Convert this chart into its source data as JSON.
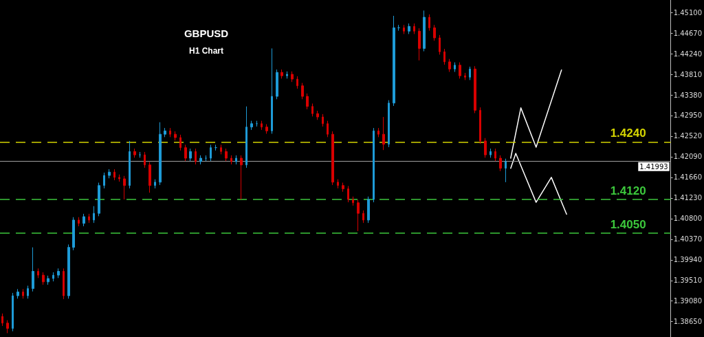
{
  "chart_data": {
    "type": "candlestick",
    "title": "GBPUSD",
    "subtitle": "H1 Chart",
    "categories": [
      null,
      null,
      null,
      null,
      null,
      null,
      null,
      null,
      null,
      null,
      null,
      null,
      null,
      null,
      null,
      null,
      null,
      null,
      null,
      null,
      null,
      null,
      null,
      null,
      null,
      null,
      null,
      null,
      null,
      null,
      null,
      null,
      null,
      null,
      null,
      null,
      null,
      null,
      null,
      null,
      null,
      null,
      null,
      null,
      null,
      null,
      null,
      null,
      null,
      null,
      null,
      null,
      null,
      null,
      null,
      null,
      null,
      null,
      null,
      null,
      null,
      null,
      null,
      null,
      null,
      null,
      null,
      null,
      null,
      null,
      null,
      null,
      null,
      null,
      null,
      null,
      null,
      null,
      null,
      null,
      null,
      null,
      null,
      null,
      null,
      null,
      null,
      null,
      null,
      null,
      null,
      null,
      null,
      null,
      null,
      null,
      null,
      null,
      null,
      null,
      null,
      null,
      null,
      null,
      null,
      null,
      null,
      null,
      null,
      null,
      null,
      null,
      null,
      null,
      null,
      null,
      null,
      null,
      null,
      null,
      null,
      null,
      null,
      null,
      null,
      null,
      null,
      null,
      null,
      null,
      null,
      null
    ],
    "ohlc": [
      [
        1.3876,
        1.3882,
        1.3856,
        1.3862
      ],
      [
        1.3862,
        1.3868,
        1.3841,
        1.3851
      ],
      [
        1.3851,
        1.3925,
        1.3845,
        1.3919
      ],
      [
        1.3919,
        1.3933,
        1.3913,
        1.3927
      ],
      [
        1.3927,
        1.3933,
        1.3913,
        1.3919
      ],
      [
        1.3919,
        1.394,
        1.3913,
        1.3934
      ],
      [
        1.3934,
        1.402,
        1.3928,
        1.397
      ],
      [
        1.397,
        1.3976,
        1.3956,
        1.3962
      ],
      [
        1.3962,
        1.3968,
        1.3942,
        1.3948
      ],
      [
        1.3948,
        1.3961,
        1.3942,
        1.3955
      ],
      [
        1.3955,
        1.3968,
        1.3949,
        1.3962
      ],
      [
        1.3962,
        1.3976,
        1.3956,
        1.397
      ],
      [
        1.397,
        1.3976,
        1.3912,
        1.3919
      ],
      [
        1.3919,
        1.4026,
        1.3913,
        1.402
      ],
      [
        1.402,
        1.4083,
        1.4014,
        1.4077
      ],
      [
        1.4077,
        1.4083,
        1.4064,
        1.407
      ],
      [
        1.407,
        1.409,
        1.4064,
        1.4084
      ],
      [
        1.4084,
        1.409,
        1.4071,
        1.4077
      ],
      [
        1.4077,
        1.4106,
        1.4071,
        1.4091
      ],
      [
        1.4091,
        1.4155,
        1.4085,
        1.4149
      ],
      [
        1.4149,
        1.4176,
        1.4143,
        1.417
      ],
      [
        1.417,
        1.4183,
        1.4164,
        1.4177
      ],
      [
        1.4177,
        1.4183,
        1.416,
        1.4166
      ],
      [
        1.4166,
        1.4172,
        1.4157,
        1.4163
      ],
      [
        1.4163,
        1.4169,
        1.412,
        1.4149
      ],
      [
        1.4149,
        1.4242,
        1.4143,
        1.422
      ],
      [
        1.422,
        1.4226,
        1.4207,
        1.4213
      ],
      [
        1.4213,
        1.4219,
        1.4207,
        1.4213
      ],
      [
        1.4213,
        1.4219,
        1.4186,
        1.4192
      ],
      [
        1.4192,
        1.4198,
        1.4134,
        1.4149
      ],
      [
        1.4149,
        1.4162,
        1.4143,
        1.4156
      ],
      [
        1.4156,
        1.4281,
        1.415,
        1.4256
      ],
      [
        1.4256,
        1.4269,
        1.425,
        1.4263
      ],
      [
        1.4263,
        1.4269,
        1.425,
        1.4256
      ],
      [
        1.4256,
        1.4262,
        1.4243,
        1.4249
      ],
      [
        1.4249,
        1.4255,
        1.4222,
        1.4228
      ],
      [
        1.4228,
        1.4234,
        1.42,
        1.4206
      ],
      [
        1.4206,
        1.4226,
        1.42,
        1.422
      ],
      [
        1.422,
        1.4226,
        1.4193,
        1.4199
      ],
      [
        1.4199,
        1.4212,
        1.4193,
        1.4206
      ],
      [
        1.4206,
        1.4212,
        1.42,
        1.4206
      ],
      [
        1.4206,
        1.4234,
        1.42,
        1.4228
      ],
      [
        1.4228,
        1.4234,
        1.4222,
        1.4228
      ],
      [
        1.4228,
        1.4234,
        1.4214,
        1.422
      ],
      [
        1.422,
        1.4226,
        1.42,
        1.4206
      ],
      [
        1.4206,
        1.4212,
        1.4193,
        1.4199
      ],
      [
        1.4199,
        1.4212,
        1.4193,
        1.4206
      ],
      [
        1.4206,
        1.4212,
        1.412,
        1.4192
      ],
      [
        1.4192,
        1.4314,
        1.4186,
        1.4271
      ],
      [
        1.4271,
        1.4284,
        1.4265,
        1.4278
      ],
      [
        1.4278,
        1.4284,
        1.4272,
        1.4278
      ],
      [
        1.4278,
        1.4284,
        1.4265,
        1.4271
      ],
      [
        1.4271,
        1.4277,
        1.4257,
        1.4263
      ],
      [
        1.4263,
        1.4435,
        1.4257,
        1.4335
      ],
      [
        1.4335,
        1.4391,
        1.4329,
        1.4385
      ],
      [
        1.4385,
        1.4391,
        1.4372,
        1.4378
      ],
      [
        1.4378,
        1.4387,
        1.4372,
        1.4381
      ],
      [
        1.4381,
        1.4387,
        1.4365,
        1.4371
      ],
      [
        1.4371,
        1.4377,
        1.4351,
        1.4357
      ],
      [
        1.4357,
        1.4363,
        1.4329,
        1.4335
      ],
      [
        1.4335,
        1.4341,
        1.4308,
        1.4314
      ],
      [
        1.4314,
        1.432,
        1.4293,
        1.4299
      ],
      [
        1.4299,
        1.4305,
        1.4286,
        1.4292
      ],
      [
        1.4292,
        1.4298,
        1.4272,
        1.4278
      ],
      [
        1.4278,
        1.4284,
        1.425,
        1.4256
      ],
      [
        1.4256,
        1.4262,
        1.415,
        1.4156
      ],
      [
        1.4156,
        1.4162,
        1.4143,
        1.4149
      ],
      [
        1.4149,
        1.4155,
        1.4136,
        1.4142
      ],
      [
        1.4142,
        1.4148,
        1.4114,
        1.412
      ],
      [
        1.412,
        1.4126,
        1.4107,
        1.4113
      ],
      [
        1.4113,
        1.4119,
        1.4054,
        1.4091
      ],
      [
        1.4091,
        1.4097,
        1.4071,
        1.4077
      ],
      [
        1.4077,
        1.4126,
        1.4071,
        1.412
      ],
      [
        1.412,
        1.4269,
        1.4114,
        1.4263
      ],
      [
        1.4263,
        1.4269,
        1.425,
        1.4256
      ],
      [
        1.4256,
        1.4292,
        1.4223,
        1.4235
      ],
      [
        1.4235,
        1.4327,
        1.4229,
        1.4321
      ],
      [
        1.4321,
        1.4503,
        1.4315,
        1.4478
      ],
      [
        1.4478,
        1.4484,
        1.4472,
        1.4478
      ],
      [
        1.4478,
        1.4484,
        1.4465,
        1.4471
      ],
      [
        1.4471,
        1.4487,
        1.4465,
        1.4481
      ],
      [
        1.4481,
        1.4487,
        1.4465,
        1.4471
      ],
      [
        1.4471,
        1.4477,
        1.441,
        1.4435
      ],
      [
        1.4435,
        1.4514,
        1.4429,
        1.45
      ],
      [
        1.45,
        1.4506,
        1.4472,
        1.4478
      ],
      [
        1.4478,
        1.4484,
        1.4451,
        1.4457
      ],
      [
        1.4457,
        1.4463,
        1.4422,
        1.4428
      ],
      [
        1.4428,
        1.4434,
        1.4401,
        1.4407
      ],
      [
        1.4407,
        1.4413,
        1.4386,
        1.4392
      ],
      [
        1.4392,
        1.4406,
        1.4386,
        1.44
      ],
      [
        1.44,
        1.4406,
        1.4372,
        1.4378
      ],
      [
        1.4378,
        1.4384,
        1.4369,
        1.4375
      ],
      [
        1.4375,
        1.4397,
        1.4369,
        1.4392
      ],
      [
        1.4392,
        1.4398,
        1.43,
        1.4306
      ],
      [
        1.4306,
        1.4312,
        1.4236,
        1.4242
      ],
      [
        1.4242,
        1.4248,
        1.4207,
        1.4213
      ],
      [
        1.4213,
        1.4226,
        1.4207,
        1.422
      ],
      [
        1.422,
        1.4226,
        1.42,
        1.4206
      ],
      [
        1.4206,
        1.4212,
        1.4179,
        1.4185
      ],
      [
        1.4185,
        1.4205,
        1.4156,
        1.4199
      ],
      null,
      null,
      null,
      null,
      null,
      null,
      null,
      null,
      null,
      null,
      null,
      null,
      null,
      null,
      null,
      null,
      null,
      null,
      null,
      null,
      null,
      null,
      null,
      null,
      null,
      null,
      null,
      null,
      null,
      null,
      null,
      null
    ],
    "colors": [
      "#d80000",
      "#d80000",
      "#1e9bd7",
      "#1e9bd7",
      "#d80000",
      "#1e9bd7",
      "#1e9bd7",
      "#d80000",
      "#d80000",
      "#1e9bd7",
      "#1e9bd7",
      "#1e9bd7",
      "#d80000",
      "#1e9bd7",
      "#1e9bd7",
      "#d80000",
      "#1e9bd7",
      "#d80000",
      "#1e9bd7",
      "#1e9bd7",
      "#1e9bd7",
      "#1e9bd7",
      "#d80000",
      "#d80000",
      "#d80000",
      "#1e9bd7",
      "#d80000",
      "#1e9bd7",
      "#d80000",
      "#d80000",
      "#1e9bd7",
      "#1e9bd7",
      "#1e9bd7",
      "#d80000",
      "#d80000",
      "#d80000",
      "#d80000",
      "#1e9bd7",
      "#d80000",
      "#1e9bd7",
      "#1e9bd7",
      "#1e9bd7",
      "#1e9bd7",
      "#d80000",
      "#d80000",
      "#d80000",
      "#1e9bd7",
      "#d80000",
      "#1e9bd7",
      "#1e9bd7",
      "#1e9bd7",
      "#d80000",
      "#d80000",
      "#1e9bd7",
      "#1e9bd7",
      "#d80000",
      "#1e9bd7",
      "#d80000",
      "#d80000",
      "#d80000",
      "#d80000",
      "#d80000",
      "#d80000",
      "#d80000",
      "#d80000",
      "#d80000",
      "#d80000",
      "#d80000",
      "#d80000",
      "#d80000",
      "#d80000",
      "#d80000",
      "#1e9bd7",
      "#1e9bd7",
      "#d80000",
      "#d80000",
      "#1e9bd7",
      "#1e9bd7",
      "#1e9bd7",
      "#d80000",
      "#1e9bd7",
      "#d80000",
      "#d80000",
      "#1e9bd7",
      "#d80000",
      "#d80000",
      "#d80000",
      "#d80000",
      "#d80000",
      "#1e9bd7",
      "#d80000",
      "#d80000",
      "#1e9bd7",
      "#d80000",
      "#d80000",
      "#d80000",
      "#1e9bd7",
      "#d80000",
      "#d80000",
      "#1e9bd7",
      null,
      null,
      null,
      null,
      null,
      null,
      null,
      null,
      null,
      null,
      null,
      null,
      null,
      null,
      null,
      null,
      null,
      null,
      null,
      null,
      null,
      null,
      null,
      null,
      null,
      null,
      null,
      null,
      null,
      null,
      null,
      null
    ],
    "series": [
      {
        "type": "line",
        "color": "#ffffff",
        "values": [
          null,
          null,
          null,
          null,
          null,
          null,
          null,
          null,
          null,
          null,
          null,
          null,
          null,
          null,
          null,
          null,
          null,
          null,
          null,
          null,
          null,
          null,
          null,
          null,
          null,
          null,
          null,
          null,
          null,
          null,
          null,
          null,
          null,
          null,
          null,
          null,
          null,
          null,
          null,
          null,
          null,
          null,
          null,
          null,
          null,
          null,
          null,
          null,
          null,
          null,
          null,
          null,
          null,
          null,
          null,
          null,
          null,
          null,
          null,
          null,
          null,
          null,
          null,
          null,
          null,
          null,
          null,
          null,
          null,
          null,
          null,
          null,
          null,
          null,
          null,
          null,
          null,
          null,
          null,
          null,
          null,
          null,
          null,
          null,
          null,
          null,
          null,
          null,
          null,
          null,
          null,
          null,
          null,
          null,
          null,
          null,
          null,
          null,
          null,
          null,
          1.4206,
          null,
          1.4311,
          null,
          null,
          1.4229,
          null,
          null,
          null,
          null,
          1.439,
          null,
          null,
          null,
          null,
          null,
          null,
          null,
          null,
          null,
          null,
          null,
          null,
          null,
          null,
          null,
          null,
          null,
          null,
          null,
          null,
          null
        ]
      },
      {
        "type": "line",
        "color": "#ffffff",
        "values": [
          null,
          null,
          null,
          null,
          null,
          null,
          null,
          null,
          null,
          null,
          null,
          null,
          null,
          null,
          null,
          null,
          null,
          null,
          null,
          null,
          null,
          null,
          null,
          null,
          null,
          null,
          null,
          null,
          null,
          null,
          null,
          null,
          null,
          null,
          null,
          null,
          null,
          null,
          null,
          null,
          null,
          null,
          null,
          null,
          null,
          null,
          null,
          null,
          null,
          null,
          null,
          null,
          null,
          null,
          null,
          null,
          null,
          null,
          null,
          null,
          null,
          null,
          null,
          null,
          null,
          null,
          null,
          null,
          null,
          null,
          null,
          null,
          null,
          null,
          null,
          null,
          null,
          null,
          null,
          null,
          null,
          null,
          null,
          null,
          null,
          null,
          null,
          null,
          null,
          null,
          null,
          null,
          null,
          null,
          null,
          null,
          null,
          null,
          null,
          null,
          1.4185,
          1.4216,
          null,
          null,
          null,
          1.4114,
          null,
          null,
          1.4166,
          null,
          null,
          1.4089,
          null,
          null,
          null,
          null,
          null,
          null,
          null,
          null,
          null,
          null,
          null,
          null,
          null,
          null,
          null,
          null,
          null,
          null,
          null,
          null
        ]
      }
    ],
    "ylim": [
      1.3833,
      1.4536
    ],
    "yticks": [
      {
        "value": 1.3865,
        "label": "1.38650"
      },
      {
        "value": 1.3908,
        "label": "1.39080"
      },
      {
        "value": 1.3951,
        "label": "1.39510"
      },
      {
        "value": 1.3994,
        "label": "1.39940"
      },
      {
        "value": 1.4037,
        "label": "1.40370"
      },
      {
        "value": 1.408,
        "label": "1.40800"
      },
      {
        "value": 1.4123,
        "label": "1.41230"
      },
      {
        "value": 1.4166,
        "label": "1.41660"
      },
      {
        "value": 1.4209,
        "label": "1.42090"
      },
      {
        "value": 1.4252,
        "label": "1.42520"
      },
      {
        "value": 1.4295,
        "label": "1.42950"
      },
      {
        "value": 1.4338,
        "label": "1.43380"
      },
      {
        "value": 1.4381,
        "label": "1.43810"
      },
      {
        "value": 1.4424,
        "label": "1.44240"
      },
      {
        "value": 1.4467,
        "label": "1.44670"
      },
      {
        "value": 1.451,
        "label": "1.45100"
      }
    ],
    "ref_lines": [
      {
        "axis": "y",
        "value": 1.41993,
        "label": "1.41993",
        "color": "#a0a0a0",
        "line_style": "solid"
      },
      {
        "axis": "y",
        "value": 1.424,
        "label": "1.4240",
        "color": "#d4d400",
        "line_style": "dashed"
      },
      {
        "axis": "y",
        "value": 1.412,
        "label": "1.4120",
        "color": "#3cc83c",
        "line_style": "dashed"
      },
      {
        "axis": "y",
        "value": 1.405,
        "label": "1.4050",
        "color": "#3cc83c",
        "line_style": "dashed"
      }
    ],
    "tick_labels": "y",
    "grid": false
  }
}
